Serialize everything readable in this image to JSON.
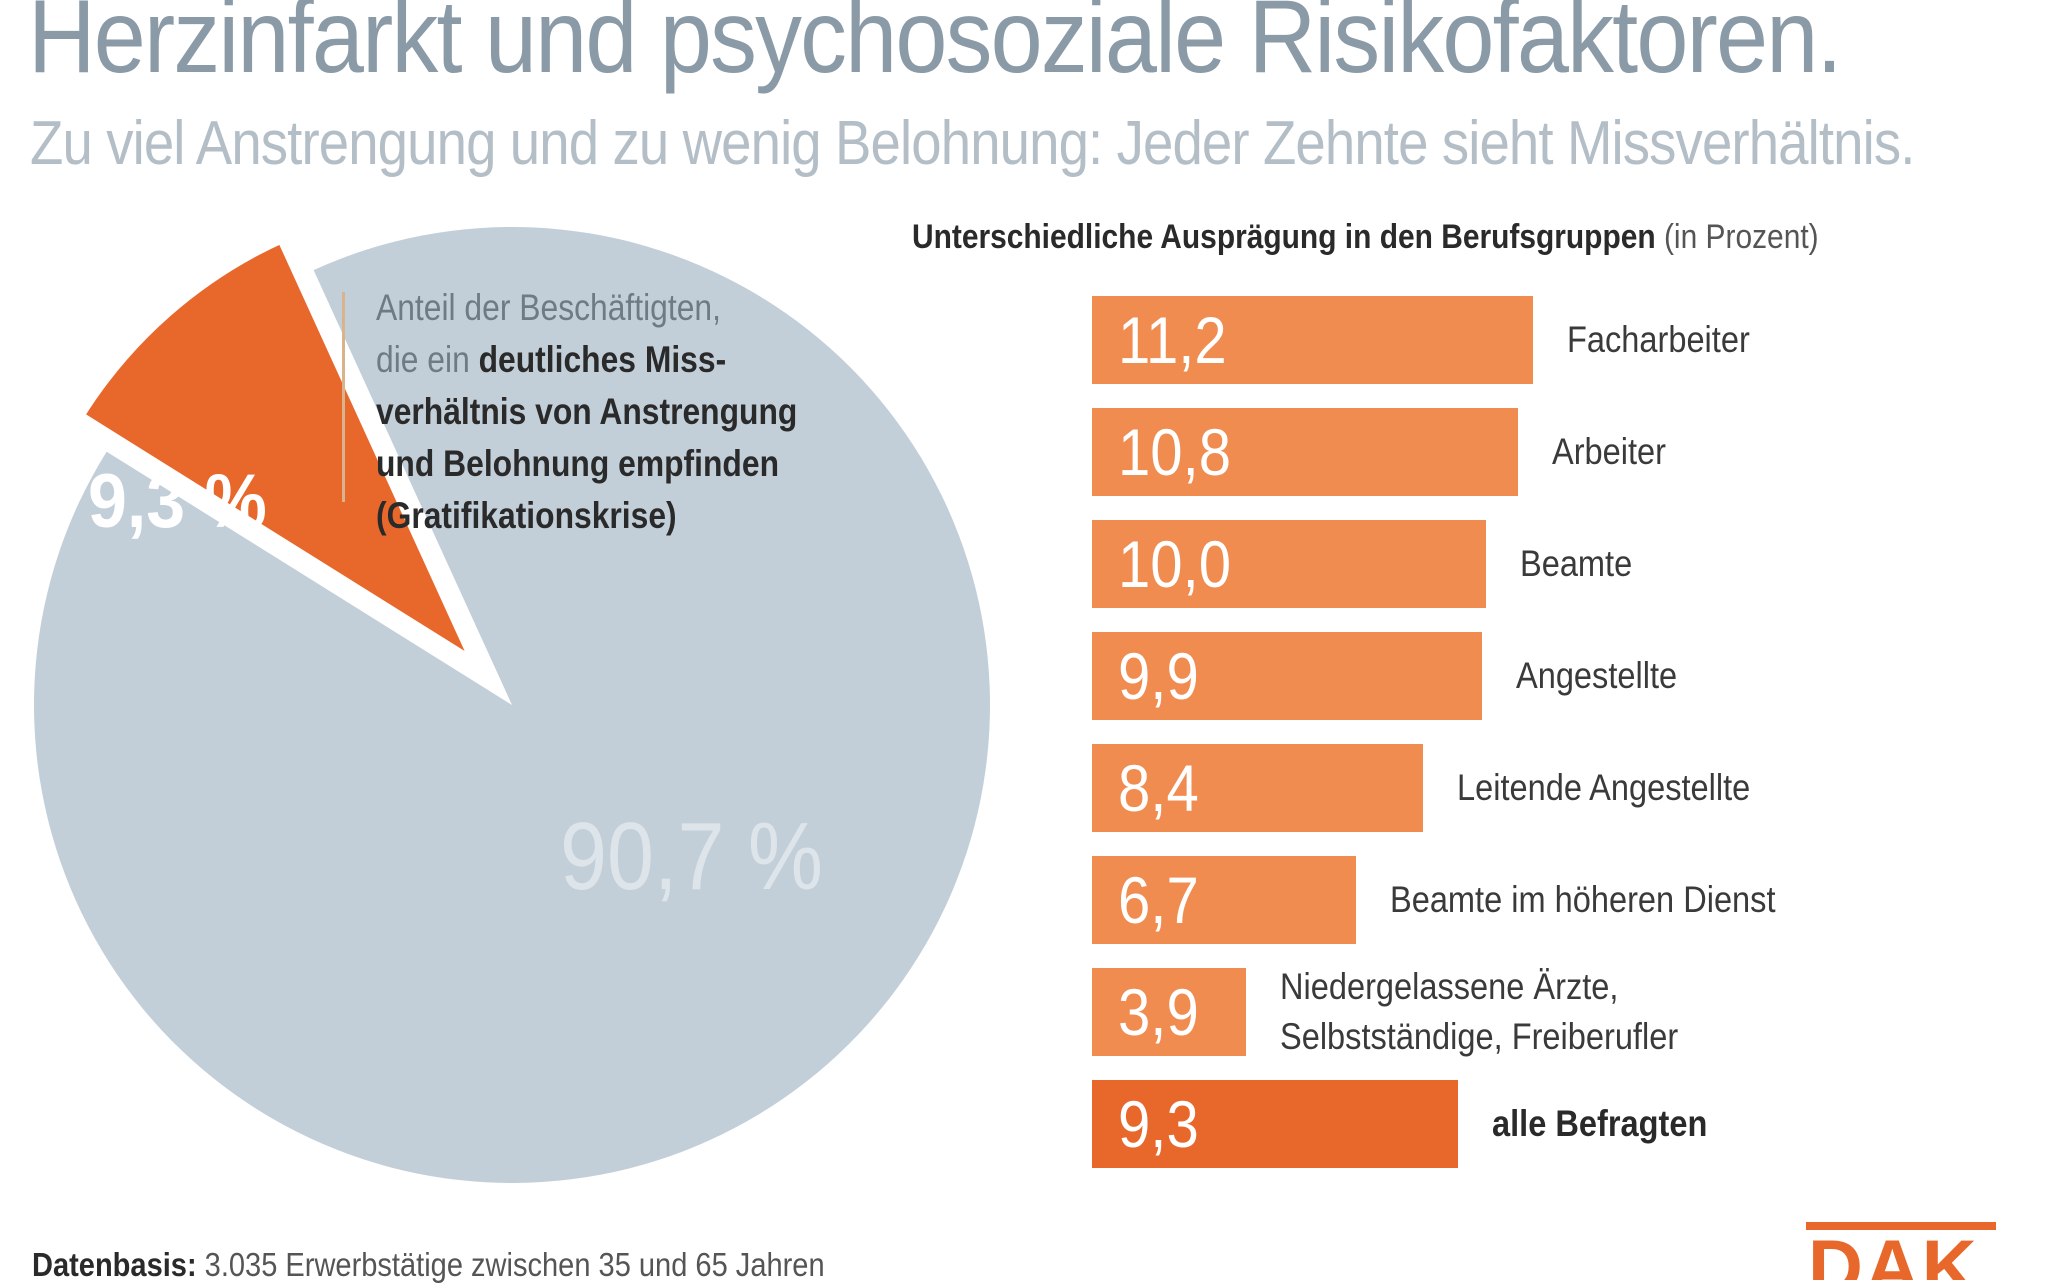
{
  "title": "Herzinfarkt und psychosoziale Risikofaktoren.",
  "subtitle": "Zu viel Anstrengung und zu wenig Belohnung: Jeder Zehnte sieht Missverhältnis.",
  "colors": {
    "pie_main": "#c2cfd9",
    "pie_slice": "#e8682c",
    "bar": "#f08c50",
    "bar_total": "#e8682c"
  },
  "pie_note": {
    "line1": "Anteil der Beschäftigten,",
    "line2_prefix": "die ein ",
    "line2_bold": "deutliches Miss-",
    "line3": "verhältnis von Anstrengung",
    "line4": "und Belohnung empfinden",
    "line5": "(Gratifikationskrise)"
  },
  "bar_heading": {
    "text": "Unterschiedliche Ausprägung in den Berufsgruppen",
    "unit": "(in Prozent)"
  },
  "footer": {
    "label": "Datenbasis:",
    "text": "3.035 Erwerbstätige zwischen 35 und 65 Jahren"
  },
  "logo": {
    "text": "DAK"
  },
  "chart_data": [
    {
      "type": "pie",
      "labels": [
        "9,3 %",
        "90,7 %"
      ],
      "values": [
        9.3,
        90.7
      ],
      "colors": [
        "#e8682c",
        "#c2cfd9"
      ]
    },
    {
      "type": "bar",
      "orientation": "horizontal",
      "categories": [
        "Facharbeiter",
        "Arbeiter",
        "Beamte",
        "Angestellte",
        "Leitende Angestellte",
        "Beamte im höheren Dienst",
        "Niedergelassene Ärzte, Selbstständige, Freiberufler",
        "alle Befragten"
      ],
      "category_lines": [
        [
          "Facharbeiter"
        ],
        [
          "Arbeiter"
        ],
        [
          "Beamte"
        ],
        [
          "Angestellte"
        ],
        [
          "Leitende Angestellte"
        ],
        [
          "Beamte im höheren Dienst"
        ],
        [
          "Niedergelassene Ärzte,",
          "Selbstständige, Freiberufler"
        ],
        [
          "alle Befragten"
        ]
      ],
      "values": [
        11.2,
        10.8,
        10.0,
        9.9,
        8.4,
        6.7,
        3.9,
        9.3
      ],
      "value_labels": [
        "11,2",
        "10,8",
        "10,0",
        "9,9",
        "8,4",
        "6,7",
        "3,9",
        "9,3"
      ],
      "highlight": [
        false,
        false,
        false,
        false,
        false,
        false,
        false,
        true
      ]
    }
  ]
}
